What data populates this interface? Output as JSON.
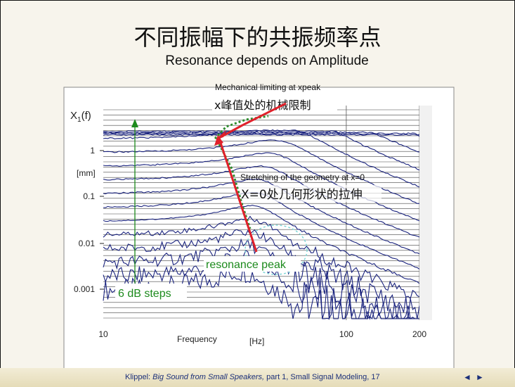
{
  "slide": {
    "title": "不同振幅下的共振频率点",
    "subtitle": "Resonance depends on Amplitude",
    "footer": {
      "author": "Klippel: ",
      "book": "Big Sound from Small Speakers,",
      "rest": " part 1, Small Signal Modeling,  17"
    },
    "nav_prev_icon": "◄",
    "nav_next_icon": "►"
  },
  "chart_data": {
    "type": "line",
    "title": "",
    "ylabel": "X1(f)",
    "yunit": "[mm]",
    "xlabel": "Frequency",
    "xunit": "[Hz]",
    "xscale": "log",
    "yscale": "log",
    "xlim": [
      10,
      200
    ],
    "ylim": [
      0.0003,
      5
    ],
    "xticks": [
      10,
      100,
      200
    ],
    "xtick_labels": [
      "10",
      "100",
      "200"
    ],
    "yticks": [
      1,
      0.1,
      0.01,
      0.001
    ],
    "ytick_labels": [
      "1",
      "0.1",
      "0.01",
      "0.001"
    ],
    "grid": true,
    "series_count": 16,
    "step_db": 6,
    "resonance_freq_small_hz": 44,
    "resonance_freq_large_hz": 78,
    "annotations": {
      "mech_en": "Mechanical limiting at xpeak",
      "mech_cn": "x峰值处的机械限制",
      "stretch_en": "Stretching of the geometry at x=0",
      "stretch_cn": "X=0处几何形状的拉伸",
      "resonance": "resonance peak",
      "steps": "6 dB steps"
    },
    "colors": {
      "curves": "#1a237e",
      "arrow_red": "#e0202a",
      "dotted_green": "#2e8b2e",
      "text_green": "#1c8a1c",
      "circle": "#7fd6d6"
    }
  }
}
